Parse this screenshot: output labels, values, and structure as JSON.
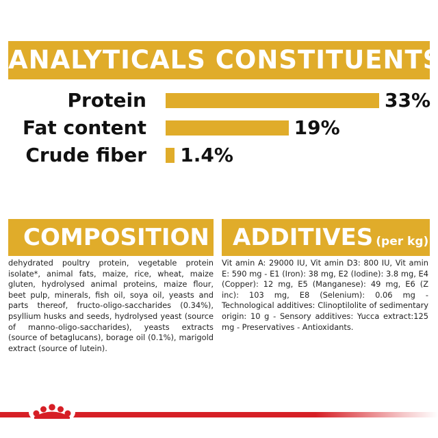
{
  "analytics": {
    "title": "ANALYTICALS CONSTITUENTS",
    "rows": [
      {
        "label": "Protein",
        "value": "33%",
        "percent": 33
      },
      {
        "label": "Fat content",
        "value": "19%",
        "percent": 19
      },
      {
        "label": "Crude fiber",
        "value": "1.4%",
        "percent": 1.4
      }
    ]
  },
  "composition": {
    "title": "COMPOSITION",
    "text": "dehydrated poultry protein, vegetable protein isolate*, animal fats, maize, rice, wheat, maize gluten, hydrolysed animal proteins, maize flour, beet pulp, minerals, fish oil, soya oil, yeasts and parts thereof, fructo-oligo-saccharides (0.34%), psyllium husks and seeds, hydrolysed yeast (source of manno-oligo-saccharides), yeasts extracts (source of betaglucans), borage oil (0.1%), marigold extract (source of lutein)."
  },
  "additives": {
    "title": "ADDITIVES",
    "unit": "(per kg)",
    "text": "Vit amin A: 29000 IU, Vit amin D3: 800 IU, Vit amin E: 590 mg - E1 (Iron): 38 mg, E2 (Iodine): 3.8 mg, E4 (Copper): 12 mg, E5 (Manganese): 49 mg, E6 (Z inc): 103 mg, E8 (Selenium): 0.06 mg - Technological additives: Clinoptilolite of sedimentary origin: 10 g - Sensory additives: Yucca extract:125 mg - Preservatives - Antioxidants."
  },
  "colors": {
    "accent": "#e0ac2a",
    "brand_red": "#d61f26"
  },
  "icons": {
    "logo": "royal-crown-logo"
  }
}
